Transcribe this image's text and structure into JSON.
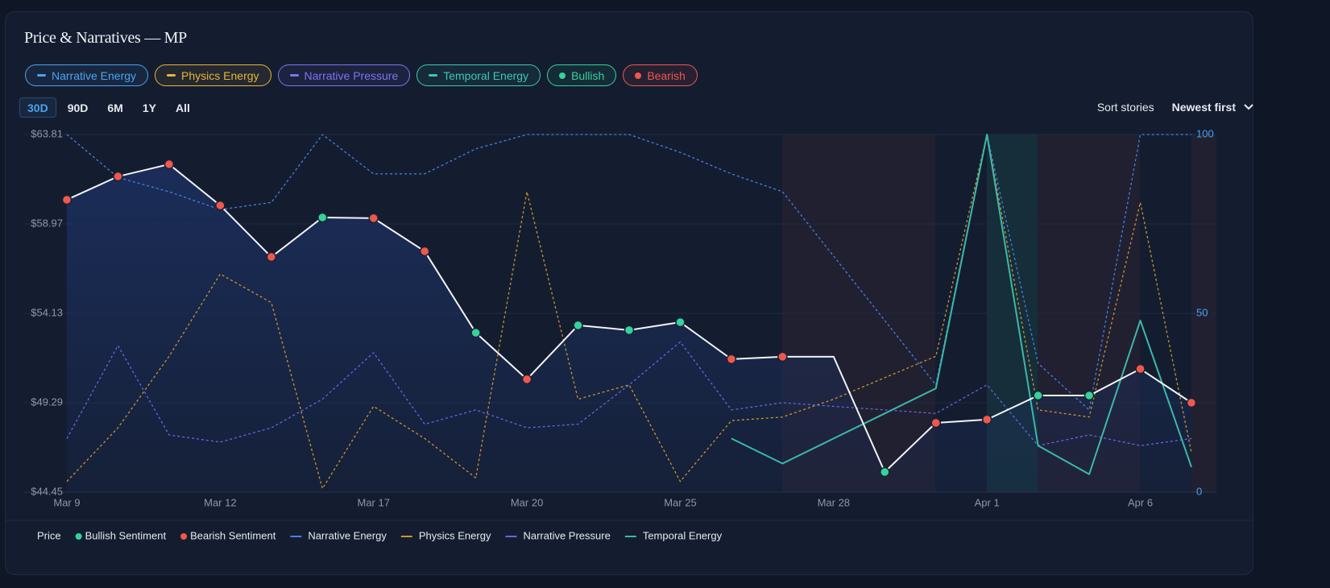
{
  "title": "Price & Narratives — MP",
  "toggles": [
    {
      "label": "Narrative Energy",
      "color": "#4aa3f0",
      "icon": "line"
    },
    {
      "label": "Physics Energy",
      "color": "#e7b53c",
      "icon": "line"
    },
    {
      "label": "Narrative Pressure",
      "color": "#7f72f0",
      "icon": "line"
    },
    {
      "label": "Temporal Energy",
      "color": "#3cc8b4",
      "icon": "line"
    },
    {
      "label": "Bullish",
      "color": "#34d399",
      "icon": "dot"
    },
    {
      "label": "Bearish",
      "color": "#f0584c",
      "icon": "dot"
    }
  ],
  "ranges": [
    "30D",
    "90D",
    "6M",
    "1Y",
    "All"
  ],
  "active_range": 0,
  "sort_label": "Sort stories",
  "sort_value": "Newest first",
  "chart_data": {
    "type": "line",
    "categories": [
      "Mar 9",
      null,
      null,
      "Mar 12",
      null,
      null,
      "Mar 17",
      null,
      null,
      "Mar 20",
      null,
      null,
      "Mar 25",
      null,
      null,
      "Mar 28",
      null,
      null,
      "Apr 1",
      null,
      null,
      "Apr 6",
      null
    ],
    "ylim": [
      44.45,
      63.81
    ],
    "yticks": [
      {
        "value": 44.45,
        "label": "$44.45"
      },
      {
        "value": 49.29,
        "label": "$49.29"
      },
      {
        "value": 54.13,
        "label": "$54.13"
      },
      {
        "value": 58.97,
        "label": "$58.97"
      },
      {
        "value": 63.81,
        "label": "$63.81"
      }
    ],
    "y2lim": [
      0,
      100
    ],
    "y2ticks": [
      0,
      50,
      100
    ],
    "grid": true,
    "sentiments": [
      {
        "name": "Bullish Sentiment",
        "color": "#34d399"
      },
      {
        "name": "Bearish Sentiment",
        "color": "#f0584c"
      }
    ],
    "series": [
      {
        "name": "Price",
        "color": "#f1f3f7",
        "dashed": false,
        "axis": "y",
        "values": [
          60.28,
          61.54,
          62.2,
          59.97,
          57.18,
          59.32,
          59.28,
          57.49,
          53.08,
          50.56,
          53.48,
          53.22,
          53.65,
          51.65,
          51.78,
          51.78,
          45.54,
          48.2,
          48.38,
          49.68,
          49.68,
          51.12,
          49.29
        ],
        "marker_colors": [
          "#f0584c",
          "#f0584c",
          "#f0584c",
          "#f0584c",
          "#f0584c",
          "#34d399",
          "#f0584c",
          "#f0584c",
          "#34d399",
          "#f0584c",
          "#34d399",
          "#34d399",
          "#34d399",
          "#f0584c",
          "#f0584c",
          null,
          "#34d399",
          "#f0584c",
          "#f0584c",
          "#34d399",
          "#34d399",
          "#f0584c",
          "#f0584c"
        ]
      },
      {
        "name": "Narrative Energy",
        "color": "#4a7fe0",
        "dashed": true,
        "axis": "y2",
        "values": [
          100,
          88,
          84,
          79,
          81,
          100,
          89,
          89,
          96,
          100,
          100,
          100,
          95,
          89,
          84,
          66,
          48,
          30,
          100,
          36,
          23,
          100,
          100
        ]
      },
      {
        "name": "Physics Energy",
        "color": "#c9962e",
        "dashed": true,
        "axis": "y2",
        "values": [
          3,
          18,
          38,
          61,
          53,
          1,
          24,
          15,
          4,
          84,
          26,
          30,
          3,
          20,
          21,
          26,
          32,
          38,
          100,
          23,
          21,
          81,
          11
        ]
      },
      {
        "name": "Narrative Pressure",
        "color": "#6a63e6",
        "dashed": true,
        "axis": "y2",
        "values": [
          15,
          41,
          16,
          14,
          18,
          26,
          39,
          19,
          23,
          18,
          19,
          30,
          42,
          23,
          25,
          24,
          23,
          22,
          30,
          13,
          16,
          13,
          15
        ]
      },
      {
        "name": "Temporal Energy",
        "color": "#3cb8a8",
        "dashed": false,
        "axis": "y2",
        "values": [
          null,
          null,
          null,
          null,
          null,
          null,
          null,
          null,
          null,
          null,
          null,
          null,
          null,
          15,
          8,
          15,
          22,
          29,
          100,
          13,
          5,
          48,
          7
        ]
      }
    ]
  }
}
